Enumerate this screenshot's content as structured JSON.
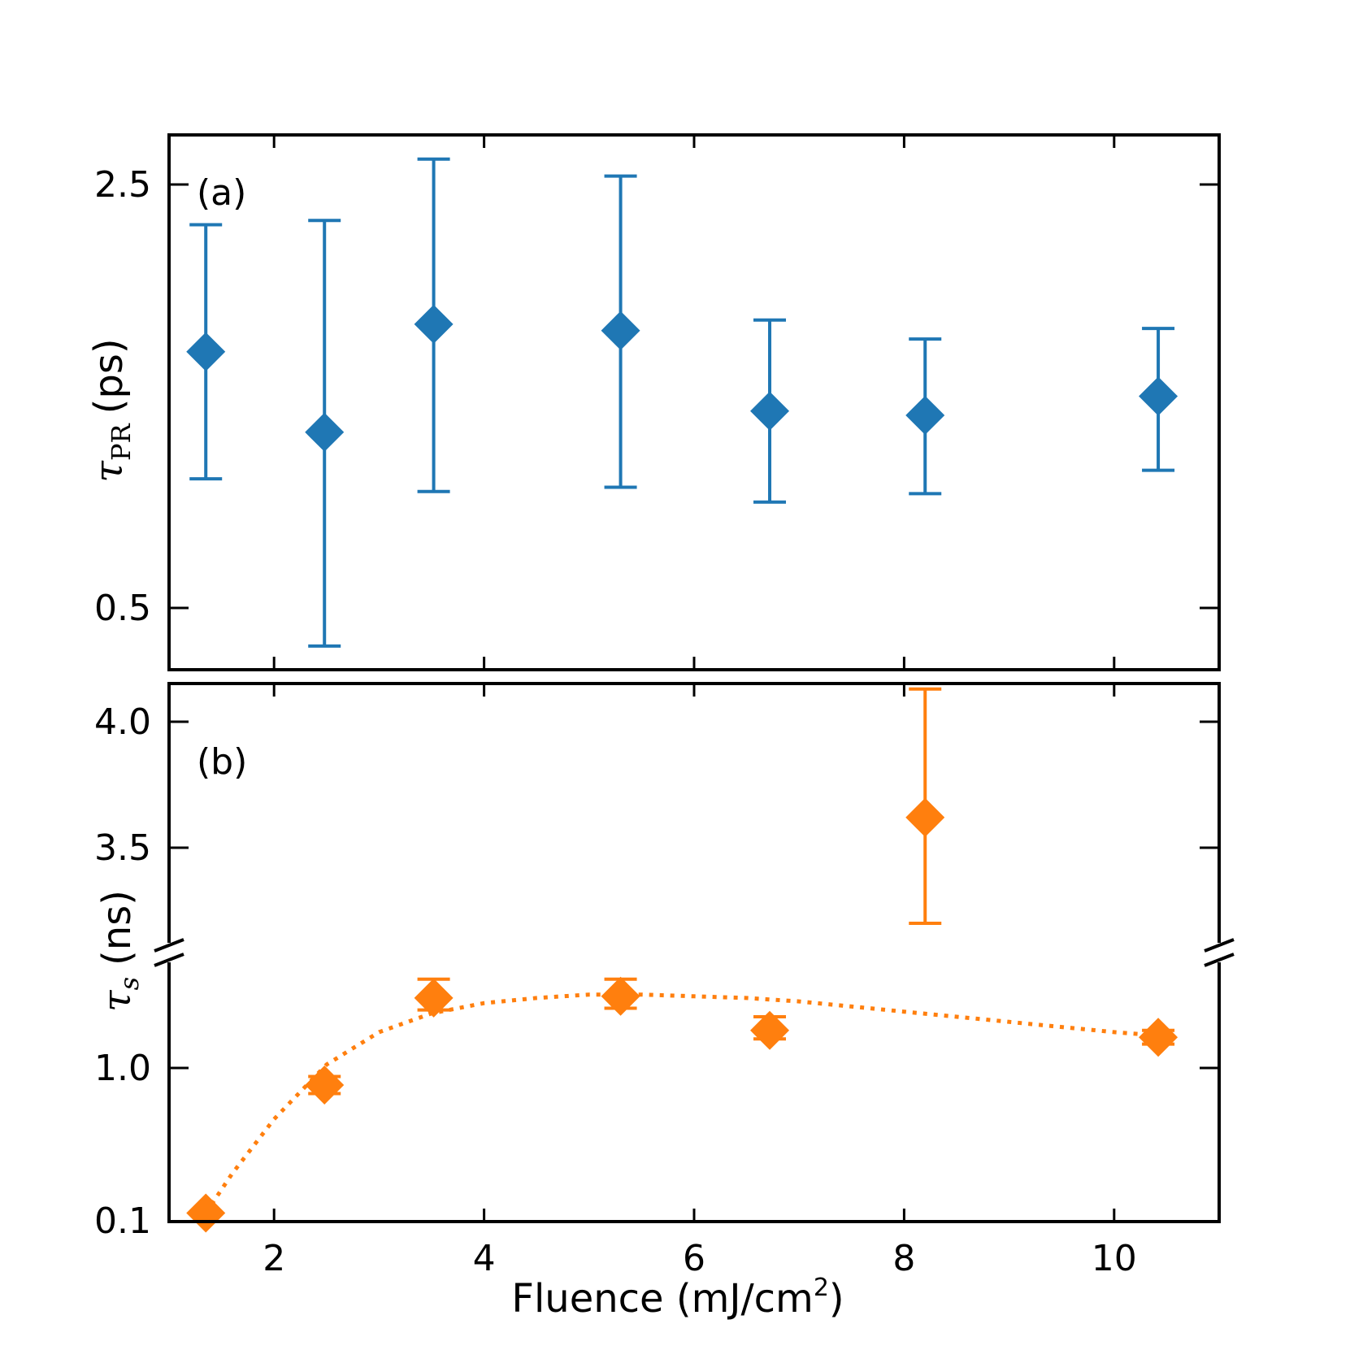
{
  "chart_data": [
    {
      "panel": "a",
      "type": "scatter",
      "panel_label": "(a)",
      "ylabel": {
        "symbol": "τ",
        "subscript": "PR",
        "unit": "(ps)"
      },
      "xlim": [
        1,
        11
      ],
      "ylim": [
        0.2,
        2.74
      ],
      "yticks": [
        0.5,
        2.5
      ],
      "ytick_labels": [
        "0.5",
        "2.5"
      ],
      "marker": "diamond",
      "color": "#1f77b4",
      "points": [
        {
          "x": 1.35,
          "y": 1.71,
          "yerr_low": 1.11,
          "yerr_high": 2.31
        },
        {
          "x": 2.48,
          "y": 1.33,
          "yerr_low": 0.32,
          "yerr_high": 2.33
        },
        {
          "x": 3.52,
          "y": 1.84,
          "yerr_low": 1.05,
          "yerr_high": 2.62
        },
        {
          "x": 5.3,
          "y": 1.81,
          "yerr_low": 1.07,
          "yerr_high": 2.54
        },
        {
          "x": 6.72,
          "y": 1.43,
          "yerr_low": 1.0,
          "yerr_high": 1.86
        },
        {
          "x": 8.2,
          "y": 1.41,
          "yerr_low": 1.04,
          "yerr_high": 1.77
        },
        {
          "x": 10.42,
          "y": 1.5,
          "yerr_low": 1.15,
          "yerr_high": 1.82
        }
      ]
    },
    {
      "panel": "b",
      "type": "scatter",
      "panel_label": "(b)",
      "ylabel": {
        "symbol": "τ",
        "subscript": "s",
        "unit": "(ns)"
      },
      "xlabel": "Fluence (mJ/cm",
      "xlabel_sup": "2",
      "xlabel_close": ")",
      "xlim": [
        1,
        11
      ],
      "broken_axis": true,
      "upper_ylim": [
        3.2,
        4.13
      ],
      "lower_ylim": [
        0.1,
        1.6
      ],
      "yticks_upper": [
        3.5,
        4.0
      ],
      "ytick_labels_upper": [
        "3.5",
        "4.0"
      ],
      "yticks_lower": [
        0.1,
        1.0
      ],
      "ytick_labels_lower": [
        "0.1",
        "1.0"
      ],
      "xticks": [
        2,
        4,
        6,
        8,
        10
      ],
      "xtick_labels": [
        "2",
        "4",
        "6",
        "8",
        "10"
      ],
      "marker": "diamond",
      "color": "#ff7f0e",
      "points": [
        {
          "x": 1.35,
          "y": 0.15,
          "yerr_low": 0.15,
          "yerr_high": 0.15
        },
        {
          "x": 2.48,
          "y": 0.9,
          "yerr_low": 0.85,
          "yerr_high": 0.95
        },
        {
          "x": 3.52,
          "y": 1.41,
          "yerr_low": 1.34,
          "yerr_high": 1.52
        },
        {
          "x": 5.3,
          "y": 1.42,
          "yerr_low": 1.35,
          "yerr_high": 1.52
        },
        {
          "x": 6.72,
          "y": 1.22,
          "yerr_low": 1.17,
          "yerr_high": 1.3
        },
        {
          "x": 8.2,
          "y": 3.62,
          "yerr_low": 3.2,
          "yerr_high": 4.13
        },
        {
          "x": 10.42,
          "y": 1.18,
          "yerr_low": 1.14,
          "yerr_high": 1.22
        }
      ],
      "fit_curve": {
        "style": "dotted",
        "x": [
          1.35,
          1.6,
          2.0,
          2.5,
          3.0,
          3.5,
          4.0,
          4.5,
          5.0,
          5.5,
          6.0,
          6.5,
          7.0,
          7.5,
          8.0,
          8.5,
          9.0,
          9.5,
          10.0,
          10.42
        ],
        "y": [
          0.15,
          0.38,
          0.7,
          1.02,
          1.21,
          1.32,
          1.38,
          1.41,
          1.43,
          1.43,
          1.42,
          1.41,
          1.39,
          1.36,
          1.33,
          1.3,
          1.27,
          1.24,
          1.21,
          1.19
        ]
      }
    }
  ]
}
